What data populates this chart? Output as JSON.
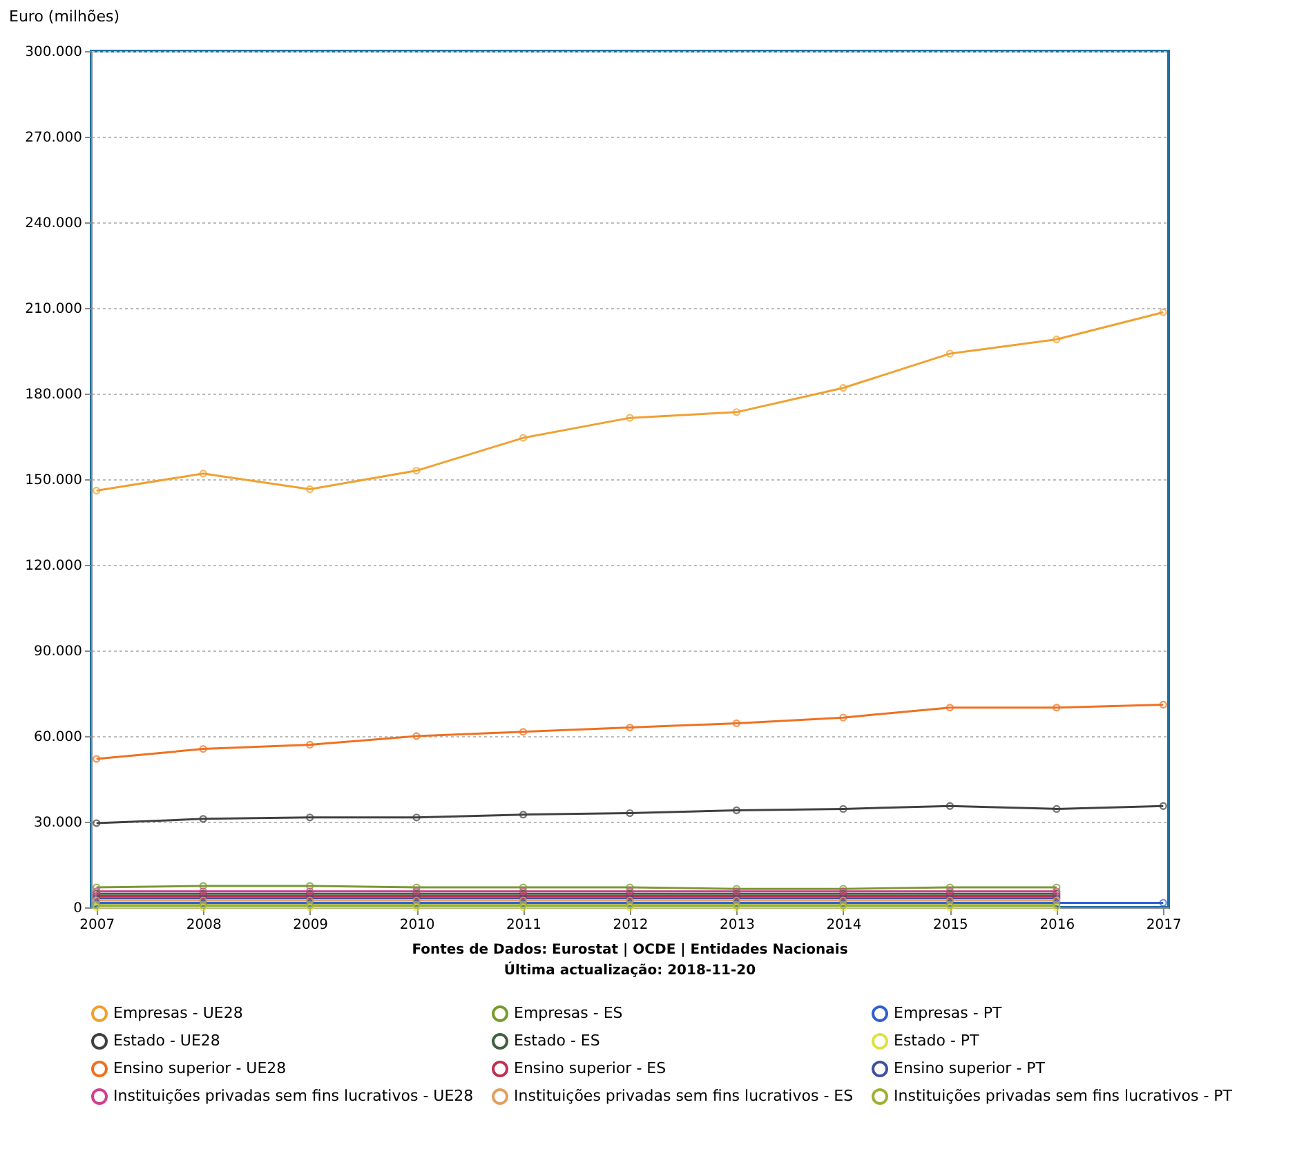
{
  "chart_data": {
    "type": "line",
    "ylabel": "Euro (milhões)",
    "categories": [
      "2007",
      "2008",
      "2009",
      "2010",
      "2011",
      "2012",
      "2013",
      "2014",
      "2015",
      "2016",
      "2017"
    ],
    "ylim": [
      0,
      300000
    ],
    "yticks": [
      {
        "value": 0,
        "label": "0"
      },
      {
        "value": 30000,
        "label": "30.000"
      },
      {
        "value": 60000,
        "label": "60.000"
      },
      {
        "value": 90000,
        "label": "90.000"
      },
      {
        "value": 120000,
        "label": "120.000"
      },
      {
        "value": 150000,
        "label": "150.000"
      },
      {
        "value": 180000,
        "label": "180.000"
      },
      {
        "value": 210000,
        "label": "210.000"
      },
      {
        "value": 240000,
        "label": "240.000"
      },
      {
        "value": 270000,
        "label": "270.000"
      },
      {
        "value": 300000,
        "label": "300.000"
      }
    ],
    "grid": "y",
    "legend": "bottom",
    "marker": "circle",
    "line_style": "solid",
    "series": [
      {
        "name": "Empresas - UE28",
        "color": "#f0a030",
        "values": [
          146000,
          152000,
          146500,
          153000,
          164500,
          171500,
          173500,
          182000,
          194000,
          199000,
          208500
        ]
      },
      {
        "name": "Empresas - ES",
        "color": "#7a9a30",
        "values": [
          7000,
          7500,
          7500,
          7000,
          7000,
          7000,
          6500,
          6500,
          7000,
          7000,
          null
        ]
      },
      {
        "name": "Empresas - PT",
        "color": "#3060d0",
        "values": [
          1600,
          1600,
          1600,
          1600,
          1600,
          1600,
          1600,
          1600,
          1600,
          1600,
          1600
        ]
      },
      {
        "name": "Estado - UE28",
        "color": "#404040",
        "values": [
          29500,
          31000,
          31500,
          31500,
          32500,
          33000,
          34000,
          34500,
          35500,
          34500,
          35500
        ]
      },
      {
        "name": "Estado - ES",
        "color": "#406040",
        "values": [
          4800,
          4800,
          4800,
          4800,
          4800,
          4800,
          4800,
          4800,
          4800,
          4800,
          null
        ]
      },
      {
        "name": "Estado - PT",
        "color": "#e0e040",
        "values": [
          0,
          0,
          0,
          0,
          0,
          0,
          0,
          0,
          0,
          0,
          null
        ]
      },
      {
        "name": "Ensino superior - UE28",
        "color": "#f07020",
        "values": [
          52000,
          55500,
          57000,
          60000,
          61500,
          63000,
          64500,
          66500,
          70000,
          70000,
          71000
        ]
      },
      {
        "name": "Ensino superior - ES",
        "color": "#c03050",
        "values": [
          4000,
          4000,
          4000,
          4000,
          4000,
          4000,
          4000,
          4000,
          4000,
          4000,
          null
        ]
      },
      {
        "name": "Ensino superior - PT",
        "color": "#4050a0",
        "values": [
          3200,
          3200,
          3200,
          3200,
          3200,
          3200,
          3200,
          3200,
          3200,
          3200,
          null
        ]
      },
      {
        "name": "Instituições privadas sem fins lucrativos - UE28",
        "color": "#d04090",
        "values": [
          5600,
          5600,
          5600,
          5600,
          5600,
          5600,
          5600,
          5600,
          5600,
          5600,
          null
        ]
      },
      {
        "name": "Instituições privadas sem fins lucrativos - ES",
        "color": "#e0a060",
        "values": [
          2400,
          2400,
          2400,
          2400,
          2400,
          2400,
          2400,
          2400,
          2400,
          2400,
          null
        ]
      },
      {
        "name": "Instituições privadas sem fins lucrativos - PT",
        "color": "#a0b030",
        "values": [
          800,
          800,
          800,
          800,
          800,
          800,
          800,
          800,
          800,
          800,
          null
        ]
      }
    ],
    "annotations": [
      "Fontes de Dados: Eurostat | OCDE | Entidades Nacionais",
      "Última actualização: 2018-11-20"
    ]
  }
}
